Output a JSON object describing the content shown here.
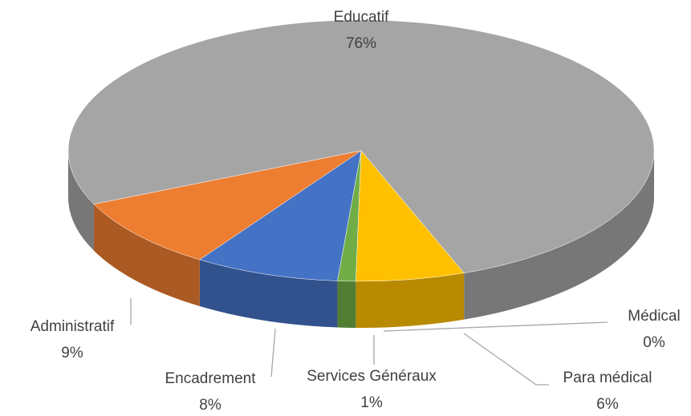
{
  "chart_data": {
    "type": "pie",
    "categories": [
      "Educatif",
      "Para médical",
      "Médical",
      "Services Généraux",
      "Encadrement",
      "Administratif"
    ],
    "values": [
      76,
      6,
      0,
      1,
      8,
      9
    ],
    "value_labels": [
      "76%",
      "6%",
      "0%",
      "1%",
      "8%",
      "9%"
    ],
    "colors": [
      "#a5a5a5",
      "#ffc000",
      "#264478",
      "#70ad47",
      "#4472c4",
      "#ed7d31"
    ]
  }
}
